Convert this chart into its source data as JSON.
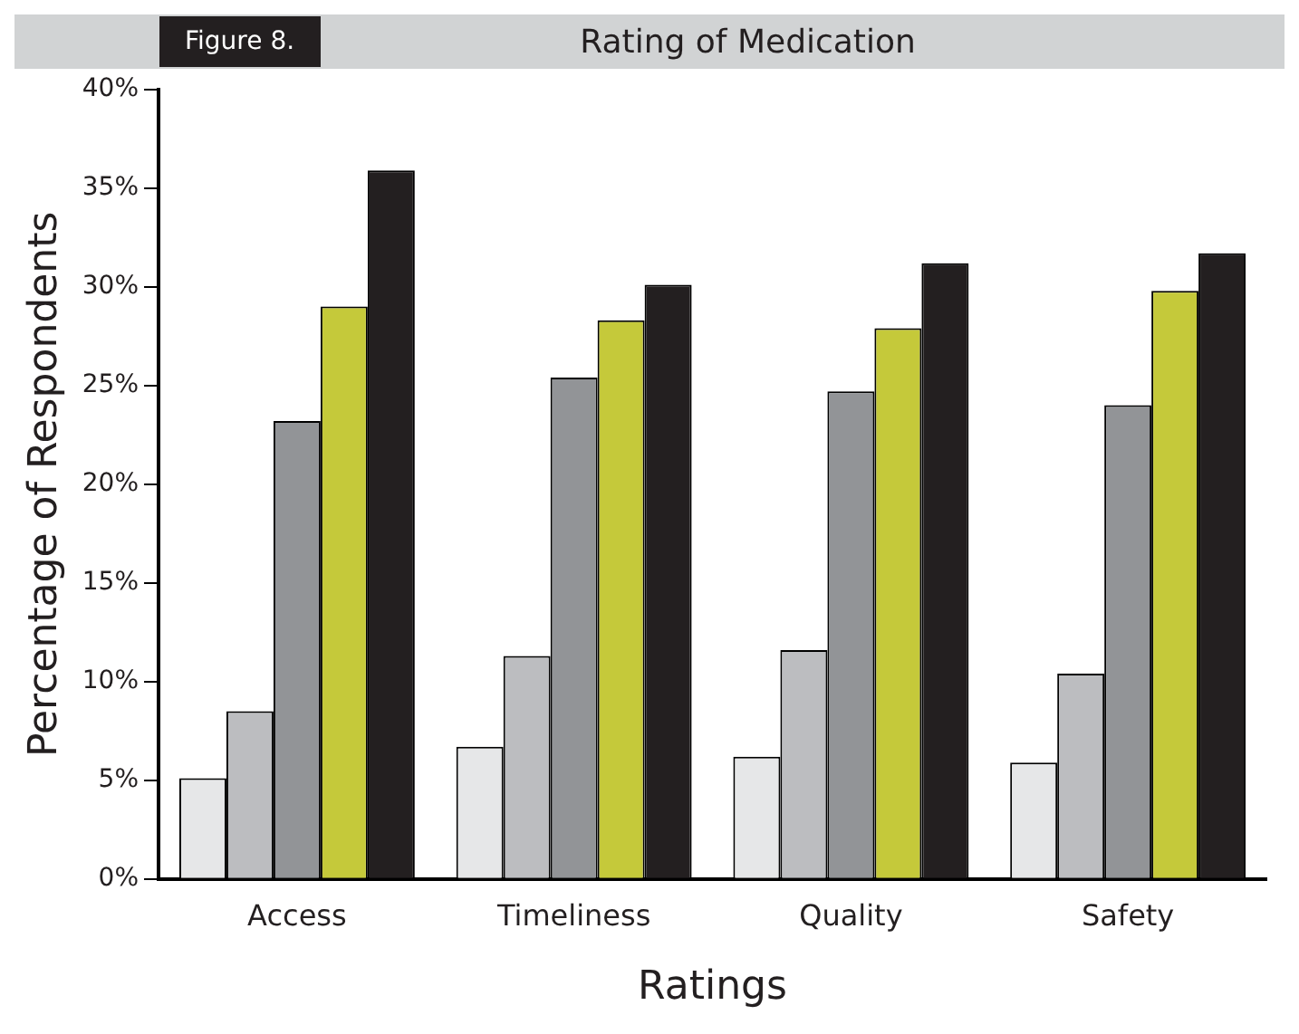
{
  "chart_data": {
    "type": "bar",
    "title": "Rating of Medication",
    "annotations": [
      "Figure 8."
    ],
    "xlabel": "Ratings",
    "ylabel": "Percentage of Respondents",
    "categories": [
      "Access",
      "Timeliness",
      "Quality",
      "Safety"
    ],
    "series": [
      {
        "color": "#e6e7e8",
        "values": [
          5.1,
          6.7,
          6.2,
          5.9
        ]
      },
      {
        "color": "#bcbdc0",
        "values": [
          8.5,
          11.3,
          11.6,
          10.4
        ]
      },
      {
        "color": "#929497",
        "values": [
          23.2,
          25.4,
          24.7,
          24.0
        ]
      },
      {
        "color": "#c5c93a",
        "values": [
          29.0,
          28.3,
          27.9,
          29.8
        ]
      },
      {
        "color": "#231f20",
        "values": [
          35.9,
          30.1,
          31.2,
          31.7
        ]
      }
    ],
    "ylim": [
      0,
      40
    ],
    "yticks": [
      {
        "value": 0,
        "label": "0%"
      },
      {
        "value": 5,
        "label": "5%"
      },
      {
        "value": 10,
        "label": "10%"
      },
      {
        "value": 15,
        "label": "15%"
      },
      {
        "value": 20,
        "label": "20%"
      },
      {
        "value": 25,
        "label": "25%"
      },
      {
        "value": 30,
        "label": "30%"
      },
      {
        "value": 35,
        "label": "35%"
      },
      {
        "value": 40,
        "label": "40%"
      }
    ],
    "grid": false,
    "legend": false
  }
}
